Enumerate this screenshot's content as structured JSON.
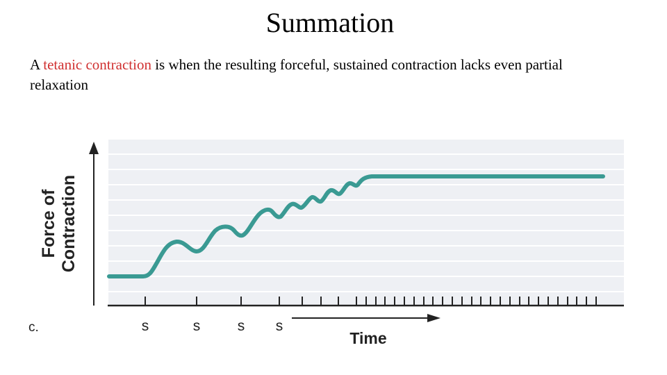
{
  "slide": {
    "title": "Summation",
    "text_parts": [
      {
        "text": "A "
      },
      {
        "text": "tetanic contraction",
        "color": "#d03030"
      },
      {
        "text": " is when the resulting forceful, sustained contraction lacks even partial relaxation"
      }
    ]
  },
  "figure": {
    "panel_label": "c.",
    "ylabel_line1": "Force of",
    "ylabel_line2": "Contraction",
    "xlabel": "Time",
    "stimulus_labels": [
      "s",
      "s",
      "s",
      "s"
    ],
    "colors": {
      "curve": "#3a9a93",
      "plot_bg": "#eef0f4",
      "grid": "#ffffff",
      "axis": "#222222"
    }
  }
}
